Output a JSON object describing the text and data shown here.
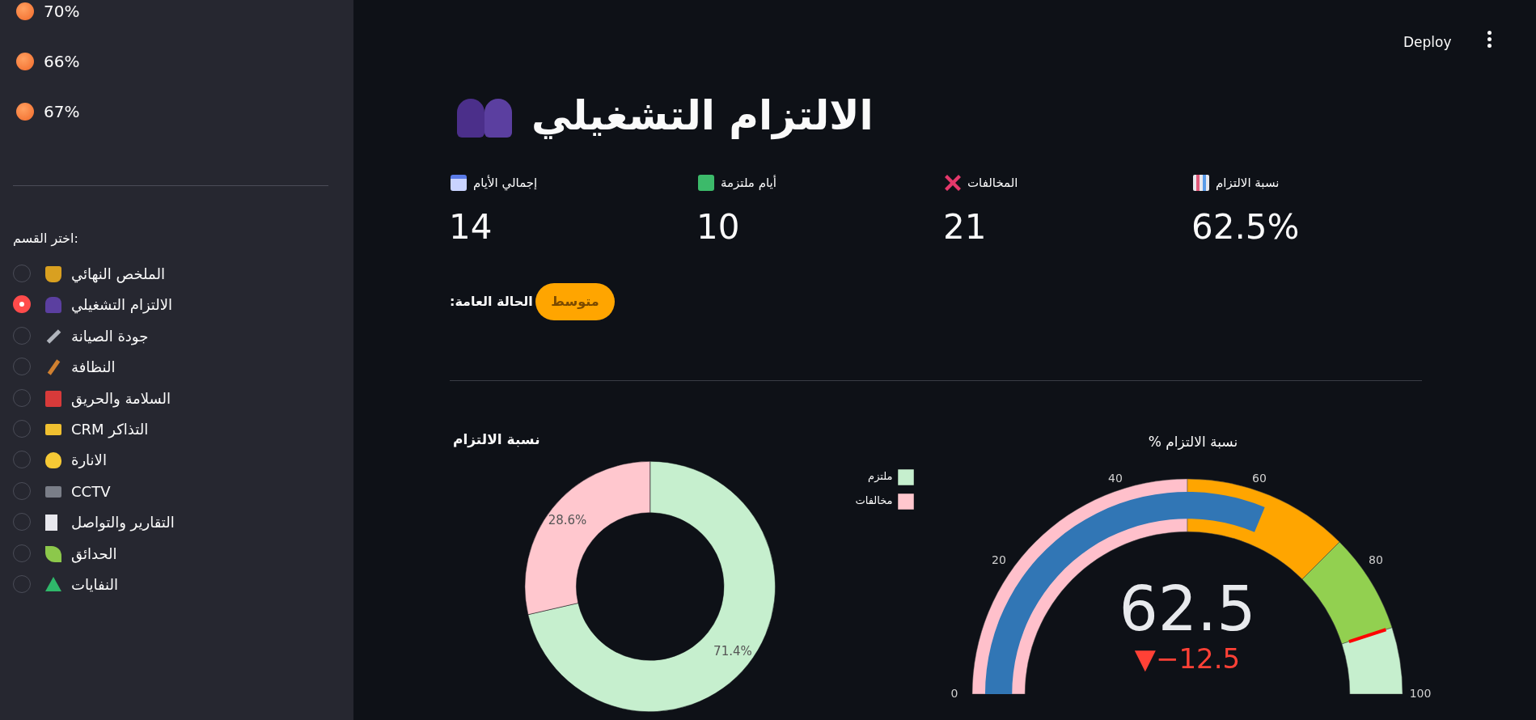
{
  "chart_data": [
    {
      "type": "other",
      "annotations": [
        "70%",
        "66%",
        "67%",
        "اختر القسم:",
        "الملخص النهائي",
        "الالتزام التشغيلي",
        "جودة الصيانة",
        "النظافة",
        "السلامة والحريق",
        "التذاكر CRM",
        "الانارة",
        "CCTV",
        "التقارير والتواصل",
        "الحدائق",
        "النفايات"
      ]
    },
    {
      "type": "other",
      "title": "الالتزام التشغيلي",
      "annotations": [
        "Deploy",
        "إجمالي الأيام",
        "14",
        "أيام ملتزمة",
        "10",
        "المخالفات",
        "21",
        "نسبة الالتزام",
        "62.5%",
        "الحالة العامة:",
        "متوسط"
      ]
    },
    {
      "type": "donut",
      "title": "نسبة الالتزام",
      "categories": [
        "ملتزم",
        "مخالفات"
      ],
      "values": [
        71.4,
        28.6
      ],
      "colors": [
        "#c6efce",
        "#ffc7ce"
      ],
      "value_labels": [
        "71.4%",
        "28.6%"
      ],
      "legend": "top right"
    },
    {
      "type": "other",
      "title": "نسبة الالتزام %",
      "annotations": [
        "0",
        "20",
        "40",
        "60",
        "80",
        "100",
        "62.5",
        "▼−12.5"
      ]
    }
  ]
}
